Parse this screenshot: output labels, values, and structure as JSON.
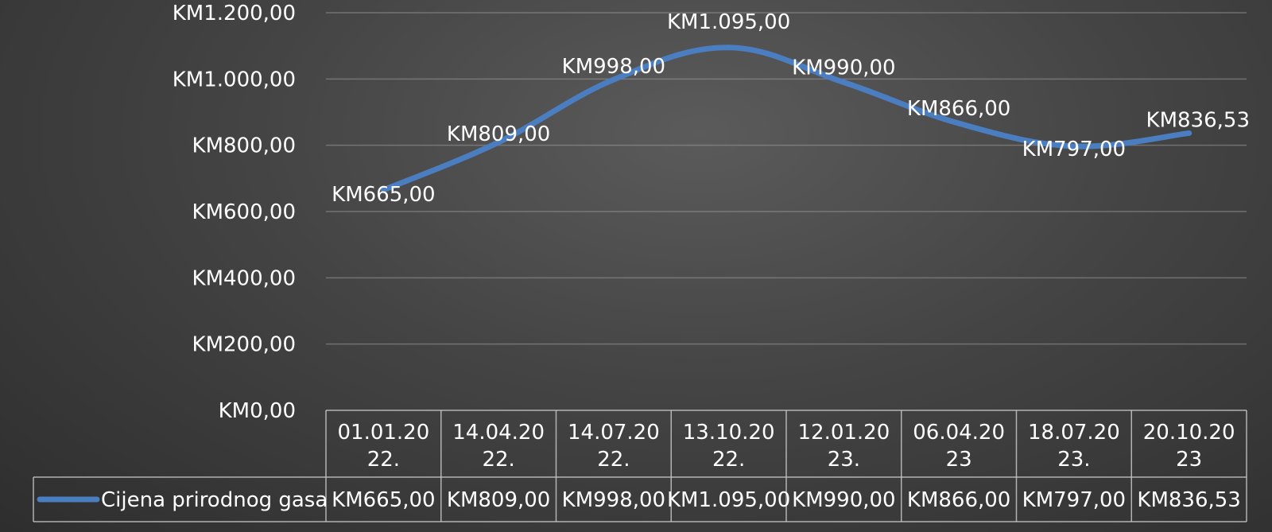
{
  "chart_data": {
    "type": "line",
    "title": "",
    "xlabel": "",
    "ylabel": "",
    "ylim": [
      0,
      1200
    ],
    "y_ticks": [
      "KM0,00",
      "KM200,00",
      "KM400,00",
      "KM600,00",
      "KM800,00",
      "KM1.000,00",
      "KM1.200,00"
    ],
    "y_tick_values": [
      0,
      200,
      400,
      600,
      800,
      1000,
      1200
    ],
    "categories": [
      [
        "01.01.20",
        "22."
      ],
      [
        "14.04.20",
        "22."
      ],
      [
        "14.07.20",
        "22."
      ],
      [
        "13.10.20",
        "22."
      ],
      [
        "12.01.20",
        "23."
      ],
      [
        "06.04.20",
        "23"
      ],
      [
        "18.07.20",
        "23."
      ],
      [
        "20.10.20",
        "23"
      ]
    ],
    "series": [
      {
        "name": "Cijena prirodnog gasa",
        "color": "#4a7ec0",
        "values": [
          665,
          809,
          998,
          1095,
          990,
          866,
          797,
          836.53
        ],
        "labels": [
          "KM665,00",
          "KM809,00",
          "KM998,00",
          "KM1.095,00",
          "KM990,00",
          "KM866,00",
          "KM797,00",
          "KM836,53"
        ]
      }
    ],
    "grid": true,
    "data_table": true
  }
}
